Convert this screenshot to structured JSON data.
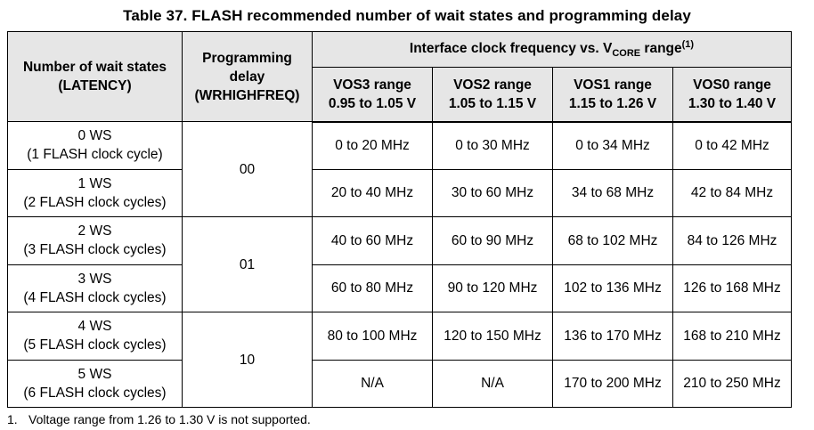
{
  "title": "Table 37. FLASH recommended number of wait states and programming delay",
  "header": {
    "wait_states_line1": "Number of wait states",
    "wait_states_line2": "(LATENCY)",
    "prog_delay_line1": "Programming",
    "prog_delay_line2": "delay",
    "prog_delay_line3": "(WRHIGHFREQ)",
    "freq_group_prefix": "Interface clock frequency vs. V",
    "freq_group_sub": "CORE",
    "freq_group_suffix": " range",
    "freq_group_note": "(1)",
    "vos": [
      {
        "name": "VOS3 range",
        "range": "0.95 to 1.05 V"
      },
      {
        "name": "VOS2 range",
        "range": "1.05 to 1.15 V"
      },
      {
        "name": "VOS1 range",
        "range": "1.15 to 1.26 V"
      },
      {
        "name": "VOS0 range",
        "range": "1.30 to 1.40 V"
      }
    ]
  },
  "rows": [
    {
      "ws": "0 WS",
      "cycles": "(1 FLASH clock cycle)",
      "freqs": [
        "0 to 20 MHz",
        "0 to 30 MHz",
        "0 to 34 MHz",
        "0 to 42 MHz"
      ]
    },
    {
      "ws": "1 WS",
      "cycles": "(2 FLASH clock cycles)",
      "freqs": [
        "20 to 40 MHz",
        "30 to 60 MHz",
        "34 to 68 MHz",
        "42 to 84 MHz"
      ]
    },
    {
      "ws": "2 WS",
      "cycles": "(3 FLASH clock cycles)",
      "freqs": [
        "40 to 60 MHz",
        "60 to 90 MHz",
        "68 to 102 MHz",
        "84 to 126 MHz"
      ]
    },
    {
      "ws": "3 WS",
      "cycles": "(4 FLASH clock cycles)",
      "freqs": [
        "60 to 80 MHz",
        "90 to 120 MHz",
        "102 to 136 MHz",
        "126 to 168 MHz"
      ]
    },
    {
      "ws": "4 WS",
      "cycles": "(5 FLASH clock cycles)",
      "freqs": [
        "80 to 100 MHz",
        "120 to 150 MHz",
        "136 to 170 MHz",
        "168 to 210 MHz"
      ]
    },
    {
      "ws": "5 WS",
      "cycles": "(6 FLASH clock cycles)",
      "freqs": [
        "N/A",
        "N/A",
        "170 to 200 MHz",
        "210 to 250 MHz"
      ]
    }
  ],
  "delays": [
    "00",
    "01",
    "10"
  ],
  "footnote": {
    "number": "1.",
    "text": "Voltage range from 1.26 to 1.30 V is not supported."
  }
}
